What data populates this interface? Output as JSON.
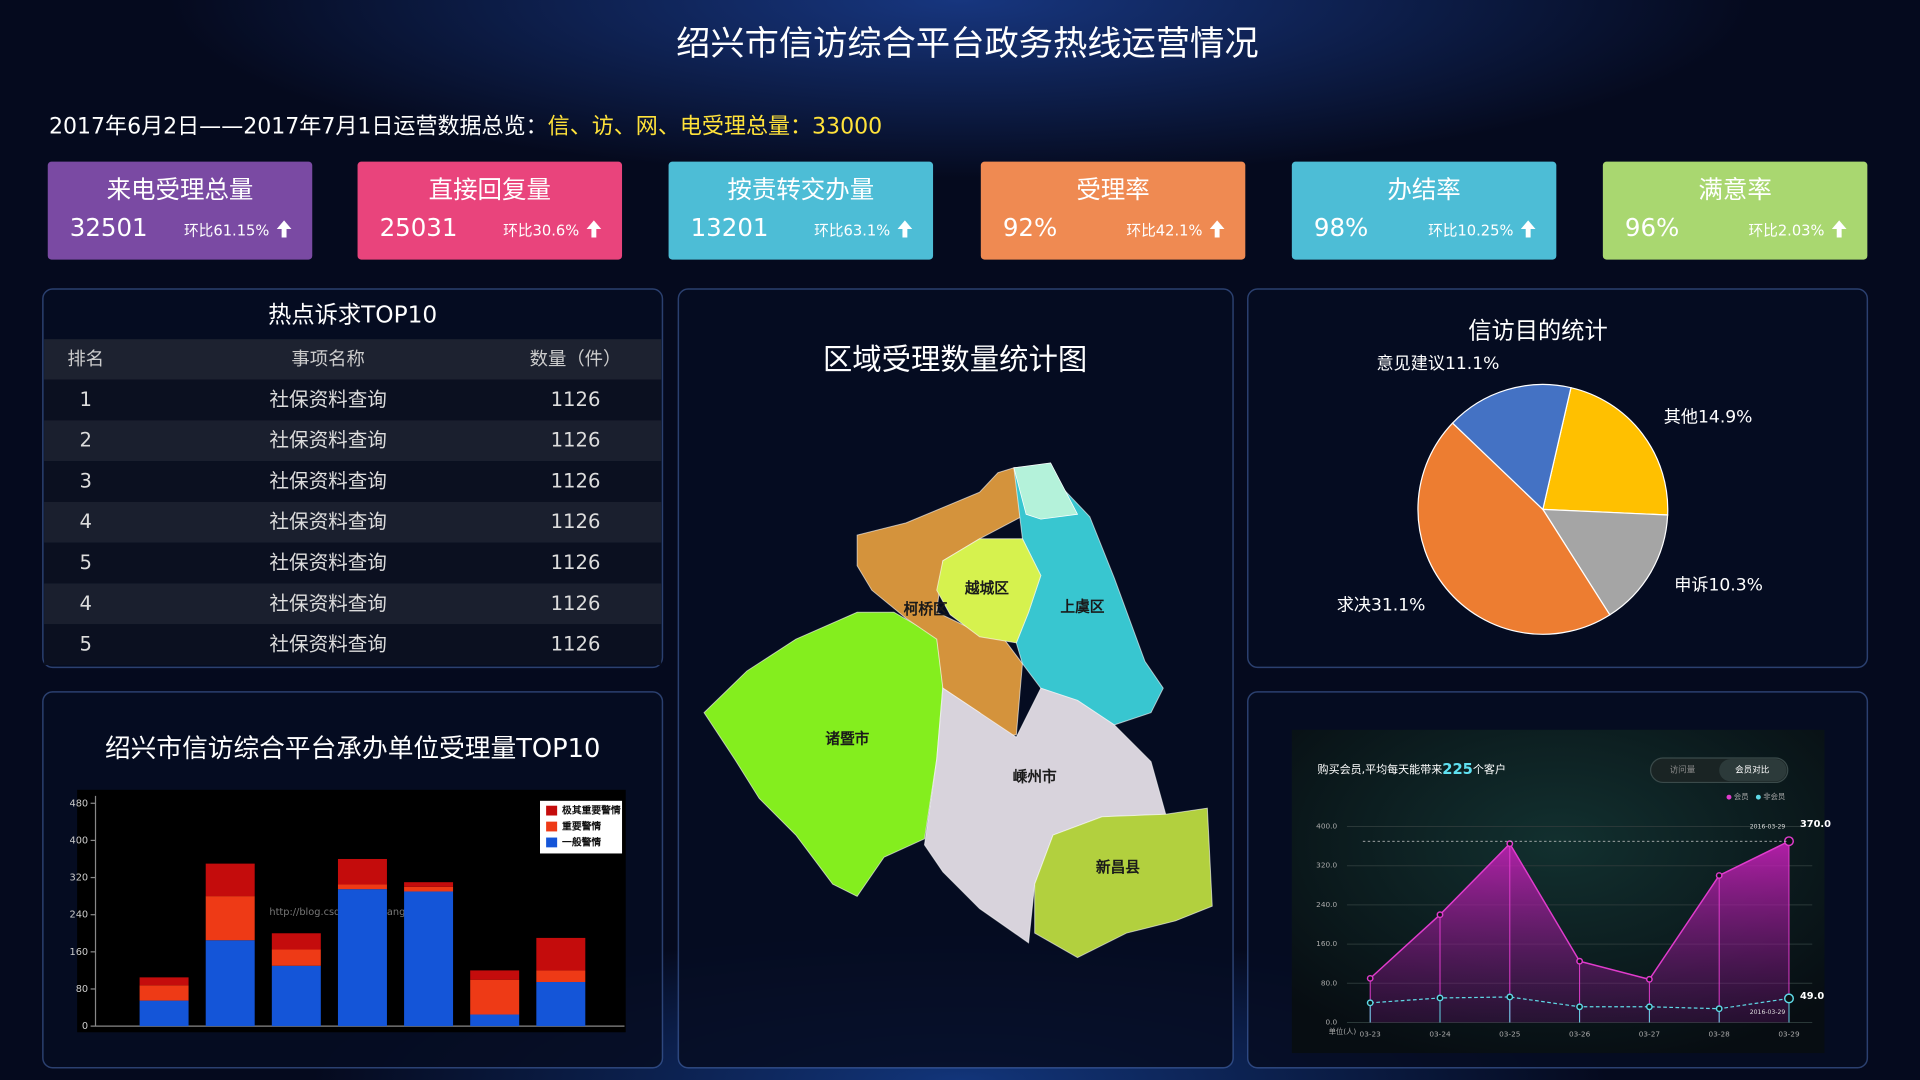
{
  "header": {
    "title": "绍兴市信访综合平台政务热线运营情况"
  },
  "summary": {
    "period": "2017年6月2日——2017年7月1日运营数据总览：",
    "highlight": "信、访、网、电受理总量：33000"
  },
  "kpis": [
    {
      "label": "来电受理总量",
      "value": "32501",
      "change": "环比61.15%",
      "color": "#7a4aa3"
    },
    {
      "label": "直接回复量",
      "value": "25031",
      "change": "环比30.6%",
      "color": "#e9447c"
    },
    {
      "label": "按责转交办量",
      "value": "13201",
      "change": "环比63.1%",
      "color": "#4dbdd6"
    },
    {
      "label": "受理率",
      "value": "92%",
      "change": "环比42.1%",
      "color": "#ef8a52"
    },
    {
      "label": "办结率",
      "value": "98%",
      "change": "环比10.25%",
      "color": "#4dbdd6"
    },
    {
      "label": "满意率",
      "value": "96%",
      "change": "环比2.03%",
      "color": "#a9d770"
    }
  ],
  "hot_table": {
    "title": "热点诉求TOP10",
    "headers": [
      "排名",
      "事项名称",
      "数量（件）"
    ],
    "rows": [
      [
        "1",
        "社保资料查询",
        "1126"
      ],
      [
        "2",
        "社保资料查询",
        "1126"
      ],
      [
        "3",
        "社保资料查询",
        "1126"
      ],
      [
        "4",
        "社保资料查询",
        "1126"
      ],
      [
        "5",
        "社保资料查询",
        "1126"
      ],
      [
        "4",
        "社保资料查询",
        "1126"
      ],
      [
        "5",
        "社保资料查询",
        "1126"
      ]
    ]
  },
  "region_map": {
    "title": "区域受理数量统计图",
    "regions": [
      {
        "name": "诸暨市",
        "color": "#84ee1e"
      },
      {
        "name": "柯桥区",
        "color": "#d4933c"
      },
      {
        "name": "上虞区",
        "color": "#38c6d0"
      },
      {
        "name": "越城区",
        "color": "#d6f24e"
      },
      {
        "name": "嵊州市",
        "color": "#d8d3dc"
      },
      {
        "name": "新昌县",
        "color": "#b2d03e"
      }
    ]
  },
  "purpose_pie": {
    "type": "pie",
    "title": "信访目的统计",
    "categories": [
      "其他",
      "申诉",
      "求决",
      "意见建议"
    ],
    "values": [
      14.9,
      10.3,
      31.1,
      11.1
    ],
    "value_labels": [
      "14.9%",
      "10.3%",
      "31.1%",
      "11.1%"
    ],
    "colors": [
      "#ffc000",
      "#a5a5a5",
      "#ed7d31",
      "#4472c4"
    ]
  },
  "unit_bar": {
    "type": "bar",
    "stacked": true,
    "title": "绍兴市信访综合平台承办单位受理量TOP10",
    "watermark": "http://blog.csdn.net/feiyangqingyun",
    "categories": [
      null,
      null,
      null,
      null,
      null,
      null,
      null
    ],
    "series": [
      {
        "name": "一般警情",
        "color": "#1455d8",
        "values": [
          55,
          185,
          130,
          295,
          290,
          25,
          95
        ]
      },
      {
        "name": "重要警情",
        "color": "#ee3a16",
        "values": [
          33,
          95,
          35,
          10,
          10,
          75,
          25
        ]
      },
      {
        "name": "极其重要警情",
        "color": "#c40c0c",
        "values": [
          17,
          70,
          35,
          55,
          10,
          20,
          70
        ]
      }
    ],
    "ylim": [
      0,
      480
    ],
    "yticks": [
      0,
      80,
      160,
      240,
      320,
      400,
      480
    ],
    "legend": "upper right"
  },
  "member_line": {
    "type": "line",
    "title_prefix": "购买会员,平均每天能带来",
    "title_number": "225",
    "title_suffix": "个客户",
    "tabs": [
      "访问量",
      "会员对比"
    ],
    "active_tab": 1,
    "y_unit": "单位(人)",
    "annotation": "2016-03-29",
    "x": [
      "03-23",
      "03-24",
      "03-25",
      "03-26",
      "03-27",
      "03-28",
      "03-29"
    ],
    "series": [
      {
        "name": "会员",
        "color": "#e03ccc",
        "values": [
          90,
          220,
          365,
          125,
          88,
          300,
          370
        ],
        "value_labels": [
          null,
          null,
          null,
          null,
          null,
          null,
          "370.0"
        ]
      },
      {
        "name": "非会员",
        "color": "#5fd8e6",
        "values": [
          40,
          50,
          52,
          32,
          32,
          28,
          49
        ],
        "value_labels": [
          null,
          null,
          null,
          null,
          null,
          null,
          "49.0"
        ]
      }
    ],
    "ylim": [
      0,
      400
    ],
    "yticks": [
      {
        "value": 0,
        "label": "0.0"
      },
      {
        "value": 80,
        "label": "80.0"
      },
      {
        "value": 160,
        "label": "160.0"
      },
      {
        "value": 240,
        "label": "240.0"
      },
      {
        "value": 320,
        "label": "320.0"
      },
      {
        "value": 400,
        "label": "400.0"
      }
    ],
    "grid": true
  }
}
